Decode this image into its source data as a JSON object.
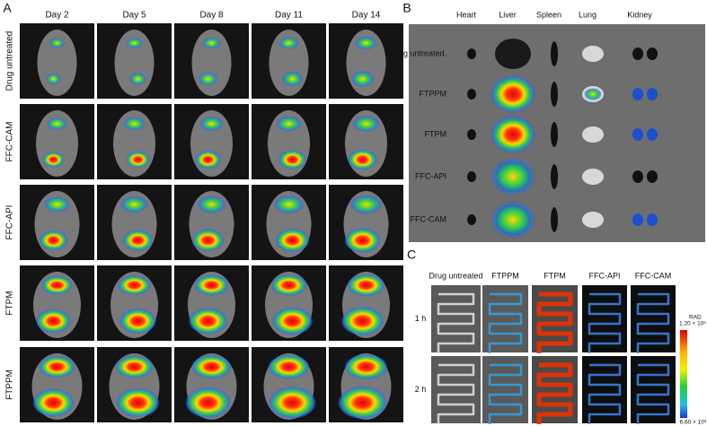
{
  "panel_a": {
    "label": "A",
    "columns": [
      "Day 2",
      "Day 5",
      "Day 8",
      "Day 11",
      "Day 14"
    ],
    "rows": [
      "Drug untreated",
      "FFC-CAM",
      "FFC-API",
      "FTPM",
      "FTPPM"
    ]
  },
  "panel_b": {
    "label": "B",
    "columns": [
      "Heart",
      "Liver",
      "Spleen",
      "Lung",
      "Kidney"
    ],
    "rows": [
      "Drug untreated.",
      "FTPPM",
      "FTPM",
      "FFC-API",
      "FFC-CAM"
    ]
  },
  "panel_c": {
    "label": "C",
    "columns": [
      "Drug untreated",
      "FTPPM",
      "FTPM",
      "FFC-API",
      "FFC-CAM"
    ],
    "rows": [
      "1 h",
      "2 h"
    ],
    "colorbar": {
      "title": "RAD",
      "max": "1.20 × 10⁵",
      "min": "6.60 × 10³"
    }
  }
}
